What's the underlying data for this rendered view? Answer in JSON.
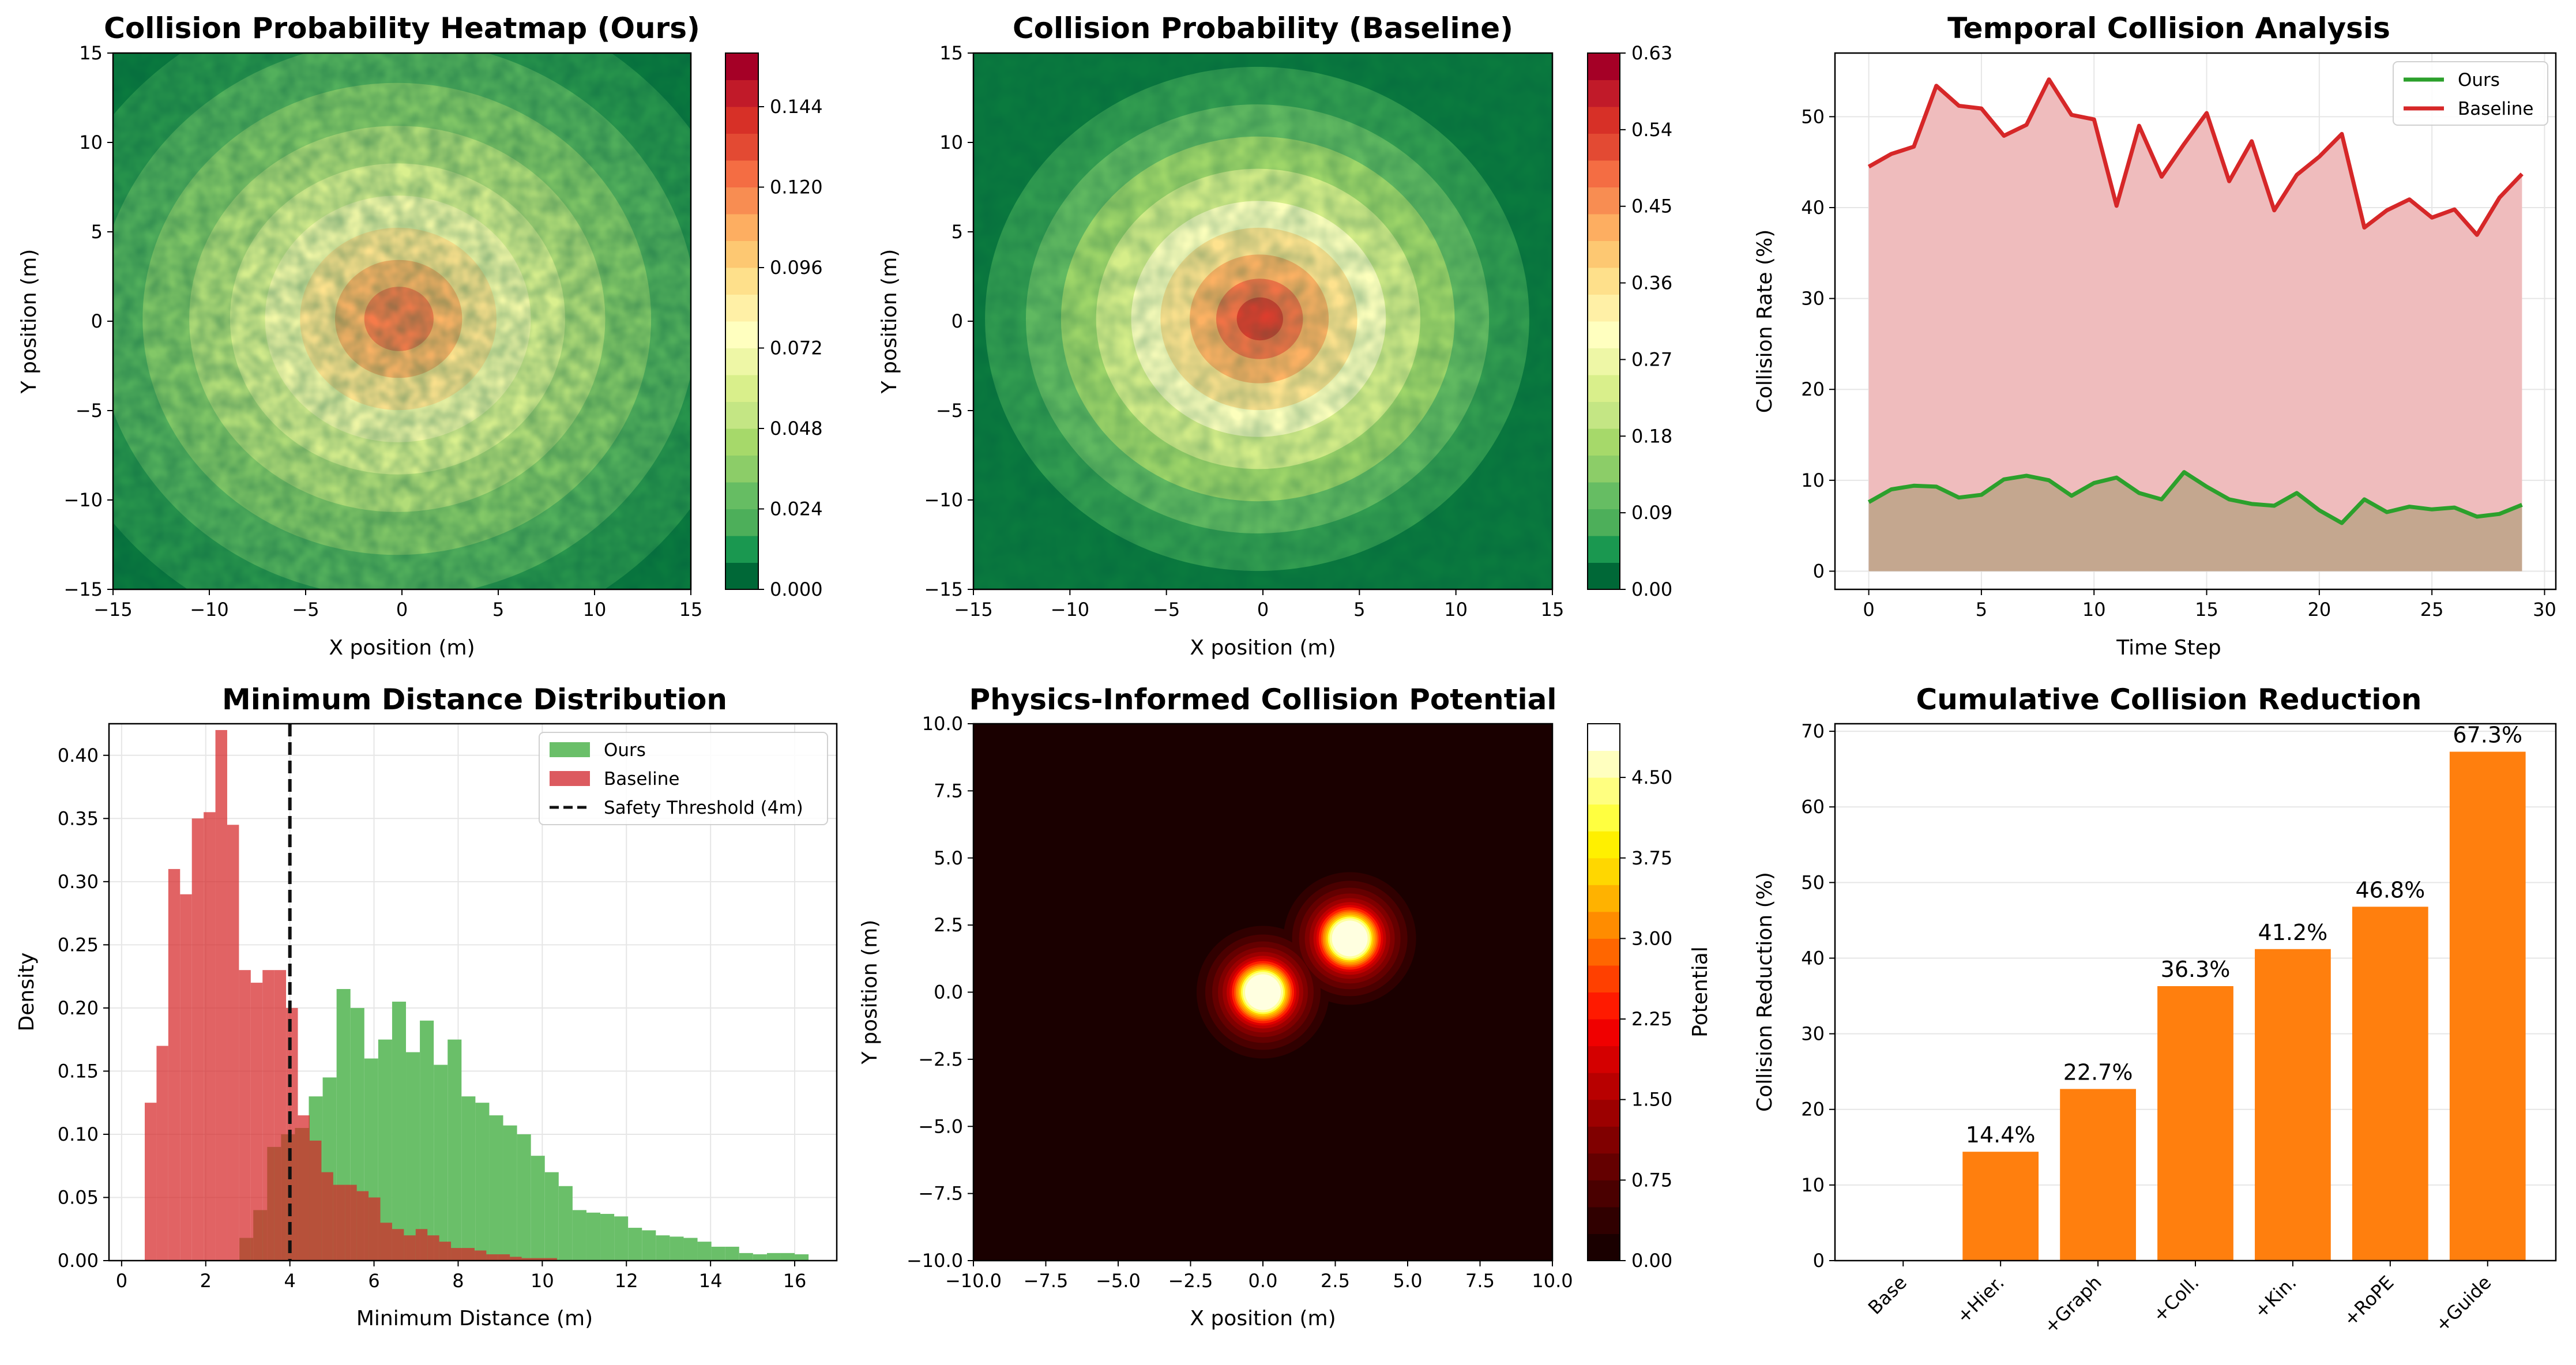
{
  "figure": {
    "panels": [
      {
        "title": "Collision Probability Heatmap (Ours)",
        "xlabel": "X position (m)",
        "ylabel": "Y position (m)"
      },
      {
        "title": "Collision Probability (Baseline)",
        "xlabel": "X position (m)",
        "ylabel": "Y position (m)"
      },
      {
        "title": "Temporal Collision Analysis",
        "xlabel": "Time Step",
        "ylabel": "Collision Rate (%)"
      },
      {
        "title": "Minimum Distance Distribution",
        "xlabel": "Minimum Distance (m)",
        "ylabel": "Density"
      },
      {
        "title": "Physics-Informed Collision Potential",
        "xlabel": "X position (m)",
        "ylabel": "Y position (m)",
        "colorbar_label": "Potential"
      },
      {
        "title": "Cumulative Collision Reduction",
        "xlabel": "",
        "ylabel": "Collision Reduction (%)"
      }
    ]
  },
  "chart_data": [
    {
      "type": "heatmap",
      "title": "Collision Probability Heatmap (Ours)",
      "xlabel": "X position (m)",
      "ylabel": "Y position (m)",
      "xlim": [
        -15,
        15
      ],
      "ylim": [
        -15,
        15
      ],
      "xticks": [
        -15,
        -10,
        -5,
        0,
        5,
        10,
        15
      ],
      "yticks": [
        -15,
        -10,
        -5,
        0,
        5,
        10,
        15
      ],
      "colorbar": {
        "min": 0,
        "max": 0.16,
        "ticks": [
          "0.000",
          "0.024",
          "0.048",
          "0.072",
          "0.096",
          "0.120",
          "0.144"
        ],
        "colormap": "RdYlGn_r"
      },
      "center": [
        0,
        0
      ],
      "peak": 0.15,
      "sigma": 6.5
    },
    {
      "type": "heatmap",
      "title": "Collision Probability (Baseline)",
      "xlabel": "X position (m)",
      "ylabel": "Y position (m)",
      "xlim": [
        -15,
        15
      ],
      "ylim": [
        -15,
        15
      ],
      "xticks": [
        -15,
        -10,
        -5,
        0,
        5,
        10,
        15
      ],
      "yticks": [
        -15,
        -10,
        -5,
        0,
        5,
        10,
        15
      ],
      "colorbar": {
        "min": 0,
        "max": 0.63,
        "ticks": [
          "0.00",
          "0.09",
          "0.18",
          "0.27",
          "0.36",
          "0.45",
          "0.54",
          "0.63"
        ],
        "colormap": "RdYlGn_r"
      },
      "center": [
        0,
        0
      ],
      "peak": 0.6,
      "sigma": 5
    },
    {
      "type": "area",
      "title": "Temporal Collision Analysis",
      "xlabel": "Time Step",
      "ylabel": "Collision Rate (%)",
      "xlim": [
        -1.5,
        30.5
      ],
      "ylim": [
        -2,
        57
      ],
      "xticks": [
        0,
        5,
        10,
        15,
        20,
        25,
        30
      ],
      "yticks": [
        0,
        10,
        20,
        30,
        40,
        50
      ],
      "grid": true,
      "legend": "top-right",
      "x": [
        0,
        1,
        2,
        3,
        4,
        5,
        6,
        7,
        8,
        9,
        10,
        11,
        12,
        13,
        14,
        15,
        16,
        17,
        18,
        19,
        20,
        21,
        22,
        23,
        24,
        25,
        26,
        27,
        28,
        29
      ],
      "series": [
        {
          "name": "Ours",
          "color": "#2ca02c",
          "fill": "#c4a78f",
          "values": [
            7.6,
            9.0,
            9.4,
            9.3,
            8.1,
            8.4,
            10.1,
            10.5,
            10.0,
            8.3,
            9.7,
            10.3,
            8.6,
            7.9,
            10.9,
            9.3,
            7.9,
            7.4,
            7.2,
            8.6,
            6.7,
            5.3,
            7.9,
            6.5,
            7.1,
            6.8,
            7.0,
            6.0,
            6.3,
            7.3
          ]
        },
        {
          "name": "Baseline",
          "color": "#d62728",
          "fill": "#efbcbd",
          "values": [
            44.5,
            45.9,
            46.7,
            53.4,
            51.2,
            50.9,
            47.9,
            49.1,
            54.1,
            50.2,
            49.7,
            40.2,
            49.0,
            43.4,
            47.0,
            50.4,
            42.9,
            47.3,
            39.7,
            43.6,
            45.6,
            48.1,
            37.8,
            39.7,
            40.9,
            38.9,
            39.8,
            37.0,
            41.1,
            43.7
          ]
        }
      ]
    },
    {
      "type": "bar",
      "title": "Minimum Distance Distribution",
      "xlabel": "Minimum Distance (m)",
      "ylabel": "Density",
      "xlim": [
        -0.3,
        17.0
      ],
      "ylim": [
        0,
        0.425
      ],
      "xticks": [
        0,
        2,
        4,
        6,
        8,
        10,
        12,
        14,
        16
      ],
      "yticks": [
        "0.00",
        "0.05",
        "0.10",
        "0.15",
        "0.20",
        "0.25",
        "0.30",
        "0.35",
        "0.40"
      ],
      "grid": true,
      "legend": "top-right",
      "threshold": {
        "x": 4,
        "label": "Safety Threshold (4m)"
      },
      "series": [
        {
          "name": "Ours",
          "color": "#6abf69",
          "bin_start": 2.8,
          "bin_width": 0.33,
          "values": [
            0.018,
            0.04,
            0.09,
            0.1,
            0.105,
            0.13,
            0.145,
            0.215,
            0.2,
            0.16,
            0.175,
            0.205,
            0.165,
            0.19,
            0.155,
            0.175,
            0.13,
            0.125,
            0.115,
            0.107,
            0.1,
            0.083,
            0.07,
            0.059,
            0.04,
            0.038,
            0.037,
            0.035,
            0.026,
            0.024,
            0.02,
            0.019,
            0.018,
            0.015,
            0.011,
            0.011,
            0.006,
            0.005,
            0.006,
            0.006,
            0.005
          ]
        },
        {
          "name": "Baseline",
          "color": "#dc5a5f",
          "bin_start": 0.55,
          "bin_width": 0.28,
          "values": [
            0.125,
            0.17,
            0.31,
            0.29,
            0.35,
            0.355,
            0.42,
            0.345,
            0.23,
            0.22,
            0.23,
            0.23,
            0.2,
            0.115,
            0.095,
            0.07,
            0.06,
            0.06,
            0.055,
            0.05,
            0.03,
            0.025,
            0.02,
            0.025,
            0.02,
            0.015,
            0.01,
            0.01,
            0.008,
            0.005,
            0.005,
            0.003,
            0.002,
            0.002,
            0.002
          ]
        }
      ]
    },
    {
      "type": "heatmap",
      "title": "Physics-Informed Collision Potential",
      "xlabel": "X position (m)",
      "ylabel": "Y position (m)",
      "xlim": [
        -10,
        10
      ],
      "ylim": [
        -10,
        10
      ],
      "xticks": [
        "−10.0",
        "−7.5",
        "−5.0",
        "−2.5",
        "0.0",
        "2.5",
        "5.0",
        "7.5",
        "10.0"
      ],
      "yticks": [
        "−10.0",
        "−7.5",
        "−5.0",
        "−2.5",
        "0.0",
        "2.5",
        "5.0",
        "7.5",
        "10.0"
      ],
      "colorbar": {
        "label": "Potential",
        "min": 0,
        "max": 5,
        "ticks": [
          "0.00",
          "0.75",
          "1.50",
          "2.25",
          "3.00",
          "3.75",
          "4.50"
        ],
        "colormap": "hot"
      },
      "sources": [
        {
          "x": 0,
          "y": 0
        },
        {
          "x": 3,
          "y": 2
        }
      ]
    },
    {
      "type": "bar",
      "title": "Cumulative Collision Reduction",
      "xlabel": "",
      "ylabel": "Collision Reduction (%)",
      "ylim": [
        0,
        71
      ],
      "yticks": [
        0,
        10,
        20,
        30,
        40,
        50,
        60,
        70
      ],
      "grid": true,
      "color": "#ff7f0e",
      "categories": [
        "Base",
        "+Hier.",
        "+Graph",
        "+Coll.",
        "+Kin.",
        "+RoPE",
        "+Guide"
      ],
      "values": [
        0,
        14.4,
        22.7,
        36.3,
        41.2,
        46.8,
        67.3
      ],
      "labels": [
        "",
        "14.4%",
        "22.7%",
        "36.3%",
        "41.2%",
        "46.8%",
        "67.3%"
      ]
    }
  ]
}
